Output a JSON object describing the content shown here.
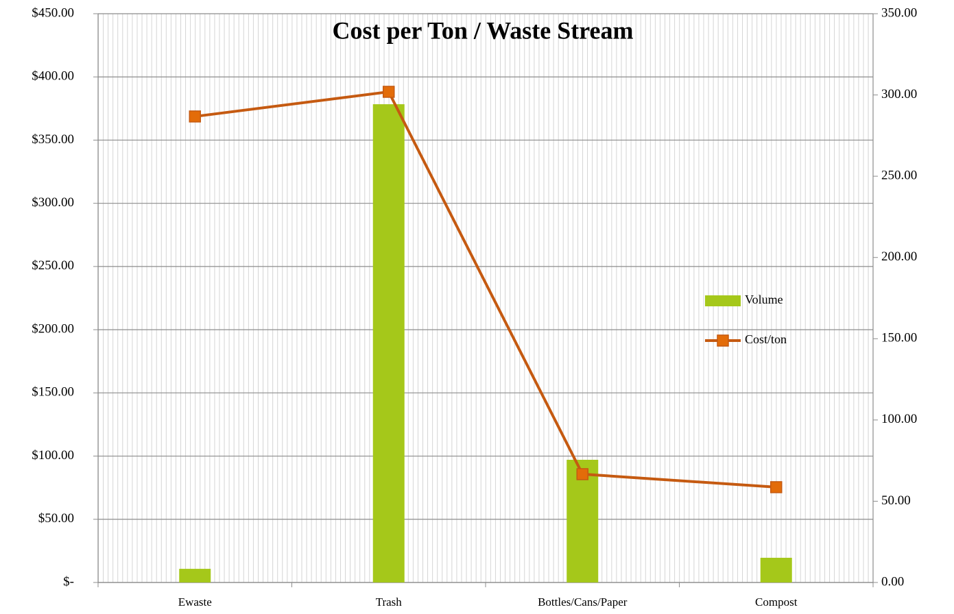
{
  "chart_data": {
    "type": "combo",
    "title": "Cost per Ton / Waste Stream",
    "categories": [
      "Ewaste",
      "Trash",
      "Bottles/Cans/Paper",
      "Compost"
    ],
    "series": [
      {
        "name": "Volume",
        "type": "bar",
        "axis": "y2",
        "color": "#a5c81a",
        "values": [
          8.4,
          294.3,
          75.5,
          15.2
        ]
      },
      {
        "name": "Cost/ton",
        "type": "line",
        "axis": "y",
        "color": "#c55a11",
        "marker_color": "#e36c09",
        "values": [
          368.7,
          388.2,
          85.7,
          75.4
        ]
      }
    ],
    "ylim": [
      0,
      450
    ],
    "yticks": [
      {
        "value": 0,
        "label": "$-"
      },
      {
        "value": 50,
        "label": "$50.00"
      },
      {
        "value": 100,
        "label": "$100.00"
      },
      {
        "value": 150,
        "label": "$150.00"
      },
      {
        "value": 200,
        "label": "$200.00"
      },
      {
        "value": 250,
        "label": "$250.00"
      },
      {
        "value": 300,
        "label": "$300.00"
      },
      {
        "value": 350,
        "label": "$350.00"
      },
      {
        "value": 400,
        "label": "$400.00"
      },
      {
        "value": 450,
        "label": "$450.00"
      }
    ],
    "y2lim": [
      0,
      350
    ],
    "y2ticks": [
      {
        "value": 0,
        "label": "0.00"
      },
      {
        "value": 50,
        "label": "50.00"
      },
      {
        "value": 100,
        "label": "100.00"
      },
      {
        "value": 150,
        "label": "150.00"
      },
      {
        "value": 200,
        "label": "200.00"
      },
      {
        "value": 250,
        "label": "250.00"
      },
      {
        "value": 300,
        "label": "300.00"
      },
      {
        "value": 350,
        "label": "350.00"
      }
    ],
    "grid": true,
    "legend": "right"
  }
}
